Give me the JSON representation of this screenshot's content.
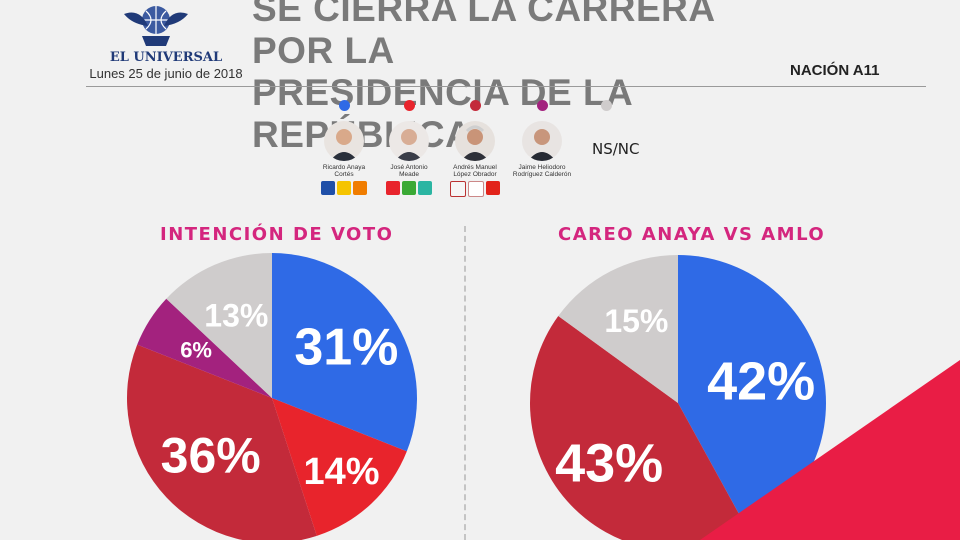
{
  "masthead": {
    "brand": "EL UNIVERSAL",
    "date": "Lunes 25 de junio de 2018",
    "section": "NACIÓN A11"
  },
  "headline": {
    "line1": "SE CIERRA LA CARRERA POR LA",
    "line2": "PRESIDENCIA DE LA REPÚBLICA"
  },
  "candidates": [
    {
      "name_line1": "Ricardo Anaya",
      "name_line2": "Cortés",
      "color": "#2f6ae6",
      "icon": "portrait-icon"
    },
    {
      "name_line1": "José Antonio",
      "name_line2": "Meade",
      "color": "#e8242c",
      "icon": "portrait-icon"
    },
    {
      "name_line1": "Andrés Manuel",
      "name_line2": "López Obrador",
      "color": "#c32a3a",
      "icon": "portrait-icon"
    },
    {
      "name_line1": "Jaime Heliodoro",
      "name_line2": "Rodríguez Calderón",
      "color": "#a3227e",
      "icon": "portrait-icon"
    }
  ],
  "nsnc": {
    "label": "NS/NC",
    "color": "#cfcccc"
  },
  "chart_data": [
    {
      "type": "pie",
      "title": "INTENCIÓN DE VOTO",
      "slices": [
        {
          "label": "31%",
          "value": 31,
          "color": "#2f6ae6"
        },
        {
          "label": "14%",
          "value": 14,
          "color": "#e8242c"
        },
        {
          "label": "36%",
          "value": 36,
          "color": "#c32a3a"
        },
        {
          "label": "6%",
          "value": 6,
          "color": "#a3227e"
        },
        {
          "label": "13%",
          "value": 13,
          "color": "#cfcccc"
        }
      ]
    },
    {
      "type": "pie",
      "title": "CAREO ANAYA VS AMLO",
      "slices": [
        {
          "label": "42%",
          "value": 42,
          "color": "#2f6ae6"
        },
        {
          "label": "43%",
          "value": 43,
          "color": "#c32a3a"
        },
        {
          "label": "15%",
          "value": 15,
          "color": "#cfcccc"
        }
      ]
    }
  ]
}
